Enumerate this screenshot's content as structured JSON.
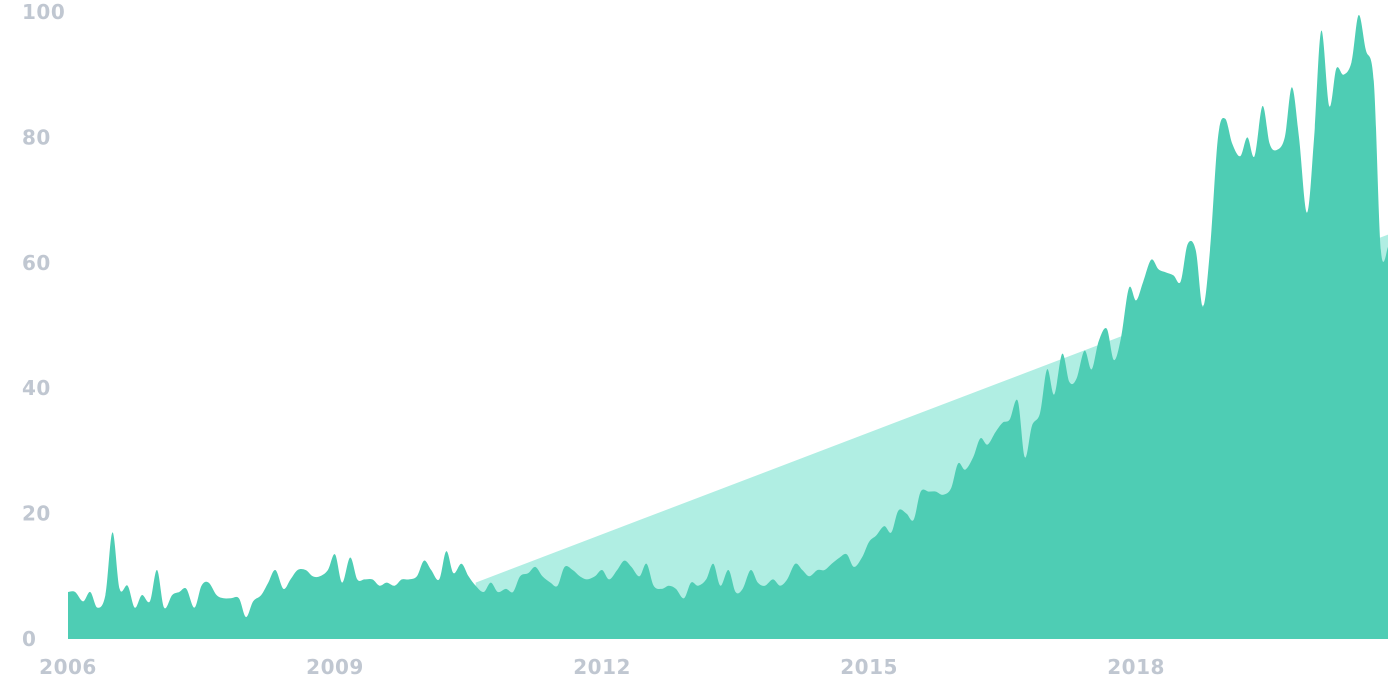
{
  "chart_data": {
    "type": "area",
    "title": "",
    "xlabel": "",
    "ylabel": "",
    "xlim": [
      2006,
      2020.83
    ],
    "ylim": [
      0,
      100
    ],
    "grid": false,
    "x_ticks": [
      "2006",
      "2009",
      "2012",
      "2015",
      "2018"
    ],
    "y_ticks": [
      "0",
      "20",
      "40",
      "60",
      "80",
      "100"
    ],
    "colors": {
      "series": "#4ecdb4",
      "trend": "#b0eee3",
      "tick_labels": "#c0c7d1"
    },
    "series": [
      {
        "type": "area",
        "x": [
          2006.0,
          2006.08,
          2006.17,
          2006.25,
          2006.33,
          2006.42,
          2006.5,
          2006.58,
          2006.67,
          2006.75,
          2006.83,
          2006.92,
          2007.0,
          2007.08,
          2007.17,
          2007.25,
          2007.33,
          2007.42,
          2007.5,
          2007.58,
          2007.67,
          2007.75,
          2007.83,
          2007.92,
          2008.0,
          2008.08,
          2008.17,
          2008.25,
          2008.33,
          2008.42,
          2008.5,
          2008.58,
          2008.67,
          2008.75,
          2008.83,
          2008.92,
          2009.0,
          2009.08,
          2009.17,
          2009.25,
          2009.33,
          2009.42,
          2009.5,
          2009.58,
          2009.67,
          2009.75,
          2009.83,
          2009.92,
          2010.0,
          2010.08,
          2010.17,
          2010.25,
          2010.33,
          2010.42,
          2010.5,
          2010.58,
          2010.67,
          2010.75,
          2010.83,
          2010.92,
          2011.0,
          2011.08,
          2011.17,
          2011.25,
          2011.33,
          2011.42,
          2011.5,
          2011.58,
          2011.67,
          2011.75,
          2011.83,
          2011.92,
          2012.0,
          2012.08,
          2012.17,
          2012.25,
          2012.33,
          2012.42,
          2012.5,
          2012.58,
          2012.67,
          2012.75,
          2012.83,
          2012.92,
          2013.0,
          2013.08,
          2013.17,
          2013.25,
          2013.33,
          2013.42,
          2013.5,
          2013.58,
          2013.67,
          2013.75,
          2013.83,
          2013.92,
          2014.0,
          2014.08,
          2014.17,
          2014.25,
          2014.33,
          2014.42,
          2014.5,
          2014.58,
          2014.67,
          2014.75,
          2014.83,
          2014.92,
          2015.0,
          2015.08,
          2015.17,
          2015.25,
          2015.33,
          2015.42,
          2015.5,
          2015.58,
          2015.67,
          2015.75,
          2015.83,
          2015.92,
          2016.0,
          2016.08,
          2016.17,
          2016.25,
          2016.33,
          2016.42,
          2016.5,
          2016.58,
          2016.67,
          2016.75,
          2016.83,
          2016.92,
          2017.0,
          2017.08,
          2017.17,
          2017.25,
          2017.33,
          2017.42,
          2017.5,
          2017.58,
          2017.67,
          2017.75,
          2017.83,
          2017.92,
          2018.0,
          2018.08,
          2018.17,
          2018.25,
          2018.33,
          2018.42,
          2018.5,
          2018.58,
          2018.67,
          2018.75,
          2018.83,
          2018.92,
          2019.0,
          2019.08,
          2019.17,
          2019.25,
          2019.33,
          2019.42,
          2019.5,
          2019.58,
          2019.67,
          2019.75,
          2019.83,
          2019.92,
          2020.0,
          2020.08,
          2020.17,
          2020.25,
          2020.33,
          2020.42,
          2020.5,
          2020.58,
          2020.67,
          2020.75,
          2020.83
        ],
        "values": [
          7.5,
          7.5,
          6,
          7.5,
          5,
          7,
          17,
          8,
          8.5,
          5,
          7,
          6,
          11,
          5,
          7,
          7.5,
          8,
          5,
          8.5,
          9,
          7,
          6.5,
          6.5,
          6.5,
          3.5,
          6,
          7,
          9,
          11,
          8,
          9.5,
          11,
          11,
          10,
          10,
          11,
          13.5,
          9,
          13,
          9.5,
          9.5,
          9.5,
          8.5,
          9,
          8.5,
          9.5,
          9.5,
          10,
          12.5,
          11,
          9.5,
          14,
          10.5,
          12,
          10,
          8.5,
          7.5,
          9,
          7.5,
          8,
          7.5,
          10,
          10.5,
          11.5,
          10,
          9,
          8.5,
          11.5,
          11,
          10,
          9.5,
          10,
          11,
          9.5,
          11,
          12.5,
          11.5,
          10,
          12,
          8.5,
          8,
          8.5,
          8,
          6.5,
          9,
          8.5,
          9.5,
          12,
          8.5,
          11,
          7.5,
          8,
          11,
          9,
          8.5,
          9.5,
          8.5,
          9.5,
          12,
          11,
          10,
          11,
          11,
          12,
          13,
          13.5,
          11.5,
          13,
          15.5,
          16.5,
          18,
          17,
          20.5,
          20,
          19,
          23.5,
          23.5,
          23.5,
          23,
          24,
          28,
          27,
          29,
          32,
          31,
          33,
          34.5,
          35,
          38,
          29,
          34,
          36,
          43,
          39,
          45.5,
          41,
          41.5,
          46,
          43,
          47.5,
          49.5,
          44.5,
          48,
          56,
          54,
          57,
          60.5,
          59,
          58.5,
          58,
          57,
          63,
          62,
          53,
          62,
          80,
          83,
          79,
          77,
          80,
          77,
          85,
          79,
          78,
          80,
          88,
          80,
          68,
          80,
          97,
          85,
          91,
          90,
          92,
          99.5,
          94,
          89,
          62,
          62.5
        ]
      },
      {
        "type": "area",
        "x": [
          2010.58,
          2020.83
        ],
        "values": [
          9,
          64.5
        ]
      }
    ]
  }
}
